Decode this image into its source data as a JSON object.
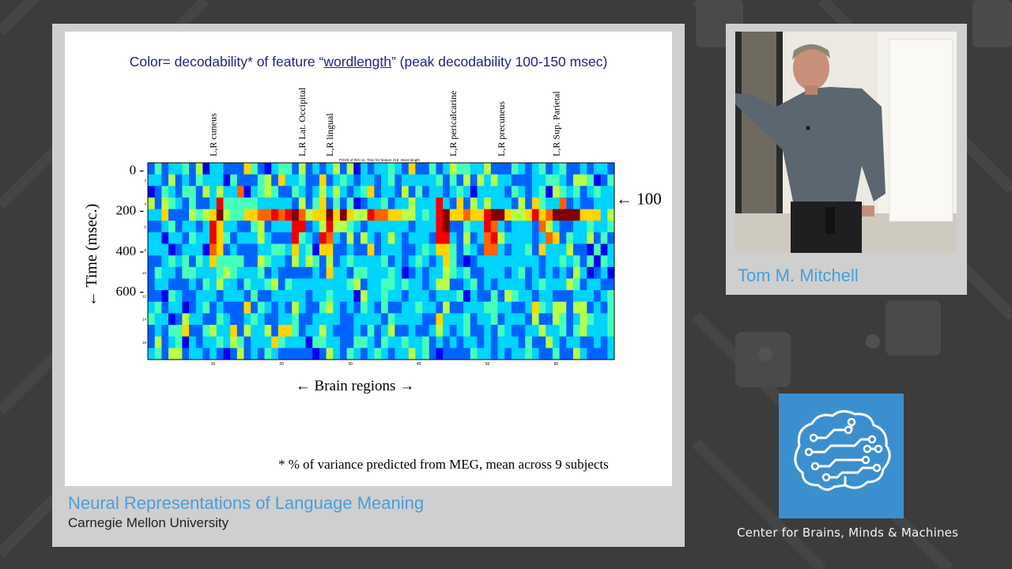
{
  "slide": {
    "title_before": "Color= decodability* of feature “",
    "title_feature": "wordlength",
    "title_after": "” (peak decodability 100-150 msec)",
    "footnote": "*  % of variance predicted from MEG, mean across 9 subjects",
    "marker_label": "← 100",
    "x_axis_label": "← Brain regions →",
    "y_axis_label": "← Time (msec.)",
    "plot_inner_title": "POVE of ROI vs. Time for feature 218: Word length"
  },
  "talk": {
    "title": "Neural Representations of Language Meaning",
    "institution": "Carnegie Mellon University"
  },
  "speaker": {
    "name": "Tom M. Mitchell"
  },
  "org": {
    "name": "Center for Brains, Minds & Machines"
  },
  "colors": {
    "accent": "#4a9fd8",
    "slide_title": "#1f1f8c",
    "logo_bg": "#3c8fcf",
    "background": "#3c3c3c"
  },
  "chart_data": {
    "type": "heatmap",
    "title": "POVE of ROI vs. Time for feature 218: Word length",
    "xlabel": "← Brain regions →",
    "ylabel": "← Time (msec.)",
    "colormap": "jet",
    "x_ticks": [
      "10",
      "20",
      "30",
      "40",
      "50",
      "60"
    ],
    "y_ticks": [
      "0 -",
      "200 -",
      "400 -",
      "600 -"
    ],
    "y_inner_ticks": [
      "2",
      "4",
      "6",
      "8",
      "10",
      "12",
      "14",
      "16"
    ],
    "region_labels": [
      {
        "text": "L,R cuneus",
        "column": 9
      },
      {
        "text": "L,R Lat. Occipital",
        "column": 22
      },
      {
        "text": "L,R lingual",
        "column": 26
      },
      {
        "text": "L,R pericalcarine",
        "column": 44
      },
      {
        "text": "L,R precuneus",
        "column": 51
      },
      {
        "text": "L,R Sup. Parietal",
        "column": 59
      }
    ],
    "n_regions": 68,
    "n_time_bins": 17,
    "peak_window_msec": [
      100,
      150
    ],
    "rows": [
      "24233425133222642134425232352513233432622423544335222432342342232332",
      "33252324333142224526334226234323323423333342425253533222334432554124",
      "12432442535337134542243235353234623325242332343133332432341543423433",
      "52543242238444443333325246242412334233533383262535333252643372322333",
      "33622254569544667787897566969655877665534389667668996556867999966635",
      "22342332386332245233388235855432333333233389224338732333275322334334",
      "33133243386423335322284328732525323532333288325237853333237624335242",
      "33312333176232223344363416622322623332234366424327732334263335221413",
      "22343424364444225433253542523433334232343236421233333333323343424143",
      "24332443334543334232222232633244333431232335434223332342323232531231",
      "23322232435332433452433333333452334434332355223423233332343335423322",
      "22143223332333242233333233433315334332333233341322425433233222333234",
      "34233123423222624323253224532324324223343325223334433223643552552324",
      "43312533224322343223342233332233332433332263334233423332522542354334",
      "23244622453362533526642335322232423522322353234223243223353342453334",
      "25234132334354233364333144332244324334334232323323233324225323322323",
      "34255233232125232432222212532432343233534212222433232334322422532223"
    ]
  }
}
